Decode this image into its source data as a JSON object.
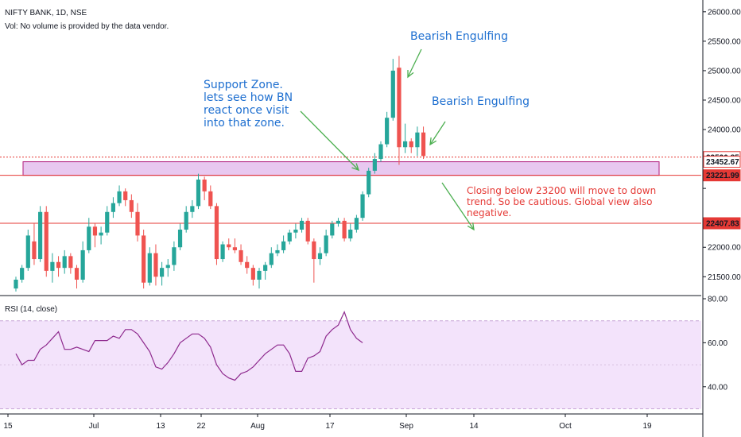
{
  "header": {
    "symbol_line": "NIFTY BANK, 1D, NSE",
    "volume_note": "Vol: No volume is provided by the data vendor.",
    "rsi_label": "RSI (14, close)"
  },
  "annotations": {
    "bearish_1": "Bearish Engulfing",
    "bearish_2": "Bearish Engulfing",
    "support": "Support Zone.\nlets see how BN\nreact once visit\ninto that zone.",
    "closing": "Closing below 23200 will move to down\ntrend. So be cautious. Global view also\nnegative."
  },
  "colors": {
    "up": "#26a69a",
    "down": "#ef5350",
    "zone_fill": "#e8c8f0",
    "zone_border": "#b0197a",
    "rsi_line": "#8e2a8e",
    "rsi_band": "#f3e3fb",
    "level_line": "#e53935"
  },
  "chart_data": [
    {
      "type": "candlestick",
      "title": "NIFTY BANK, 1D, NSE",
      "ylim": [
        21180,
        26200
      ],
      "y_ticks": [
        21500,
        22000,
        22500,
        23000,
        23500,
        24000,
        24500,
        25000,
        25500,
        26000
      ],
      "y_tick_labels": [
        "21500.00",
        "22000.00",
        "",
        "",
        "",
        "24000.00",
        "24500.00",
        "25000.00",
        "25500.00",
        "26000.00"
      ],
      "x_tick_labels": [
        "15",
        "Jul",
        "13",
        "22",
        "Aug",
        "17",
        "Sep",
        "14",
        "Oct",
        "19"
      ],
      "price_labels": [
        {
          "label": "23530.85",
          "value": 23530.85,
          "color": "#e53935",
          "style": "outline"
        },
        {
          "label": "23452.67",
          "value": 23452.67,
          "color": "#e53935",
          "style": "outline"
        },
        {
          "label": "23221.99",
          "value": 23221.99,
          "color": "#e53935",
          "style": "filled"
        },
        {
          "label": "22407.83",
          "value": 22407.83,
          "color": "#e53935",
          "style": "filled"
        }
      ],
      "support_zone": [
        23221.99,
        23452.67
      ],
      "level_lines": [
        23530.85,
        23221.99,
        22407.83
      ],
      "candles": [
        {
          "o": 21300,
          "h": 21500,
          "l": 21250,
          "c": 21450
        },
        {
          "o": 21450,
          "h": 21700,
          "l": 21400,
          "c": 21650
        },
        {
          "o": 21650,
          "h": 22300,
          "l": 21600,
          "c": 22200
        },
        {
          "o": 22100,
          "h": 22400,
          "l": 21700,
          "c": 21800
        },
        {
          "o": 21800,
          "h": 22700,
          "l": 21750,
          "c": 22600
        },
        {
          "o": 22600,
          "h": 22700,
          "l": 21500,
          "c": 21600
        },
        {
          "o": 21600,
          "h": 21900,
          "l": 21400,
          "c": 21750
        },
        {
          "o": 21750,
          "h": 21850,
          "l": 21500,
          "c": 21650
        },
        {
          "o": 21650,
          "h": 21950,
          "l": 21550,
          "c": 21850
        },
        {
          "o": 21850,
          "h": 21900,
          "l": 21550,
          "c": 21650
        },
        {
          "o": 21650,
          "h": 21700,
          "l": 21300,
          "c": 21450
        },
        {
          "o": 21450,
          "h": 22100,
          "l": 21400,
          "c": 21950
        },
        {
          "o": 21950,
          "h": 22500,
          "l": 21900,
          "c": 22350
        },
        {
          "o": 22350,
          "h": 22400,
          "l": 22000,
          "c": 22200
        },
        {
          "o": 22200,
          "h": 22350,
          "l": 22050,
          "c": 22250
        },
        {
          "o": 22250,
          "h": 22700,
          "l": 22200,
          "c": 22600
        },
        {
          "o": 22600,
          "h": 22850,
          "l": 22500,
          "c": 22750
        },
        {
          "o": 22750,
          "h": 23050,
          "l": 22700,
          "c": 22950
        },
        {
          "o": 22950,
          "h": 23000,
          "l": 22700,
          "c": 22800
        },
        {
          "o": 22800,
          "h": 22900,
          "l": 22500,
          "c": 22600
        },
        {
          "o": 22600,
          "h": 22750,
          "l": 22100,
          "c": 22200
        },
        {
          "o": 22200,
          "h": 22300,
          "l": 21300,
          "c": 21400
        },
        {
          "o": 21400,
          "h": 22000,
          "l": 21350,
          "c": 21900
        },
        {
          "o": 21900,
          "h": 22050,
          "l": 21350,
          "c": 21500
        },
        {
          "o": 21500,
          "h": 21750,
          "l": 21350,
          "c": 21650
        },
        {
          "o": 21650,
          "h": 21800,
          "l": 21500,
          "c": 21700
        },
        {
          "o": 21700,
          "h": 22100,
          "l": 21600,
          "c": 22000
        },
        {
          "o": 22000,
          "h": 22400,
          "l": 21950,
          "c": 22300
        },
        {
          "o": 22300,
          "h": 22700,
          "l": 22250,
          "c": 22600
        },
        {
          "o": 22600,
          "h": 22800,
          "l": 22500,
          "c": 22700
        },
        {
          "o": 22700,
          "h": 23250,
          "l": 22650,
          "c": 23150
        },
        {
          "o": 23150,
          "h": 23200,
          "l": 22800,
          "c": 22950
        },
        {
          "o": 22950,
          "h": 23050,
          "l": 22650,
          "c": 22700
        },
        {
          "o": 22700,
          "h": 22750,
          "l": 21700,
          "c": 21800
        },
        {
          "o": 21800,
          "h": 22100,
          "l": 21750,
          "c": 22050
        },
        {
          "o": 22050,
          "h": 22150,
          "l": 21950,
          "c": 22000
        },
        {
          "o": 22000,
          "h": 22150,
          "l": 21900,
          "c": 21950
        },
        {
          "o": 21950,
          "h": 22050,
          "l": 21700,
          "c": 21750
        },
        {
          "o": 21750,
          "h": 21850,
          "l": 21550,
          "c": 21650
        },
        {
          "o": 21650,
          "h": 21700,
          "l": 21350,
          "c": 21450
        },
        {
          "o": 21450,
          "h": 21650,
          "l": 21300,
          "c": 21600
        },
        {
          "o": 21600,
          "h": 21750,
          "l": 21450,
          "c": 21700
        },
        {
          "o": 21700,
          "h": 22000,
          "l": 21650,
          "c": 21900
        },
        {
          "o": 21900,
          "h": 22050,
          "l": 21850,
          "c": 21950
        },
        {
          "o": 21950,
          "h": 22200,
          "l": 21900,
          "c": 22100
        },
        {
          "o": 22100,
          "h": 22300,
          "l": 22050,
          "c": 22250
        },
        {
          "o": 22250,
          "h": 22400,
          "l": 22150,
          "c": 22300
        },
        {
          "o": 22300,
          "h": 22500,
          "l": 22250,
          "c": 22450
        },
        {
          "o": 22450,
          "h": 22500,
          "l": 22050,
          "c": 22100
        },
        {
          "o": 22100,
          "h": 22150,
          "l": 21400,
          "c": 21800
        },
        {
          "o": 21800,
          "h": 22000,
          "l": 21700,
          "c": 21900
        },
        {
          "o": 21900,
          "h": 22300,
          "l": 21850,
          "c": 22200
        },
        {
          "o": 22200,
          "h": 22450,
          "l": 22150,
          "c": 22400
        },
        {
          "o": 22400,
          "h": 22500,
          "l": 22350,
          "c": 22450
        },
        {
          "o": 22450,
          "h": 22500,
          "l": 22100,
          "c": 22150
        },
        {
          "o": 22150,
          "h": 22400,
          "l": 22100,
          "c": 22300
        },
        {
          "o": 22300,
          "h": 22550,
          "l": 22250,
          "c": 22500
        },
        {
          "o": 22500,
          "h": 22950,
          "l": 22450,
          "c": 22900
        },
        {
          "o": 22900,
          "h": 23350,
          "l": 22850,
          "c": 23300
        },
        {
          "o": 23300,
          "h": 23600,
          "l": 23250,
          "c": 23500
        },
        {
          "o": 23500,
          "h": 23800,
          "l": 23450,
          "c": 23750
        },
        {
          "o": 23750,
          "h": 24300,
          "l": 23700,
          "c": 24200
        },
        {
          "o": 24200,
          "h": 25200,
          "l": 24150,
          "c": 25000
        },
        {
          "o": 25050,
          "h": 25250,
          "l": 23400,
          "c": 23700
        },
        {
          "o": 23700,
          "h": 24100,
          "l": 23600,
          "c": 23800
        },
        {
          "o": 23800,
          "h": 23850,
          "l": 23600,
          "c": 23700
        },
        {
          "o": 23700,
          "h": 24050,
          "l": 23550,
          "c": 23950
        },
        {
          "o": 23950,
          "h": 24050,
          "l": 23500,
          "c": 23550
        }
      ]
    },
    {
      "type": "line",
      "title": "RSI (14, close)",
      "ylim": [
        28,
        80
      ],
      "y_ticks": [
        40,
        60,
        80
      ],
      "y_tick_labels": [
        "40.00",
        "60.00",
        "80.00"
      ],
      "bands": [
        30,
        70
      ],
      "values": [
        55,
        50,
        52,
        52,
        57,
        59,
        62,
        65,
        57,
        57,
        58,
        57,
        56,
        61,
        61,
        61,
        63,
        62,
        66,
        66,
        64,
        60,
        56,
        49,
        48,
        51,
        55,
        60,
        62,
        64,
        64,
        62,
        58,
        50,
        46,
        44,
        43,
        46,
        47,
        49,
        52,
        55,
        57,
        59,
        59,
        55,
        47,
        47,
        53,
        54,
        56,
        63,
        66,
        68,
        74,
        66,
        62,
        60
      ]
    }
  ]
}
